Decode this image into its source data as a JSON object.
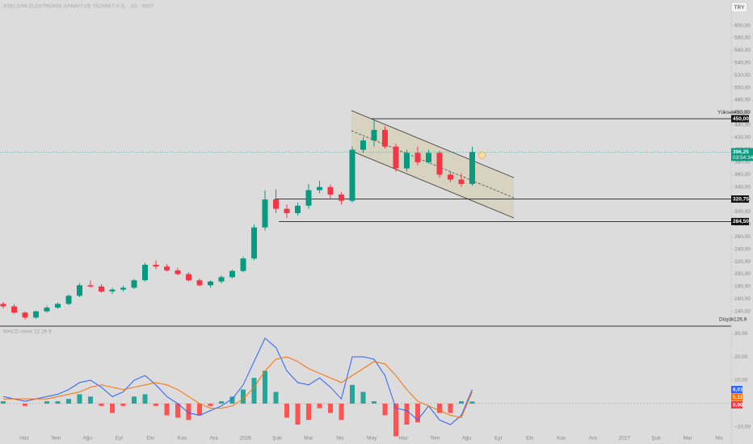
{
  "header": {
    "symbol_title": "ASELSAN ELEKTRONİK SANAYİ VE TİCARET A.Ş. · 1G · BIST",
    "currency": "TRY"
  },
  "chart_data": [
    {
      "type": "candlestick",
      "time_labels": [
        "Haz",
        "Tem",
        "Ağu",
        "Eyl",
        "Eki",
        "Kas",
        "Ara",
        "2026",
        "Şub",
        "Mar",
        "Nis",
        "May",
        "Haz",
        "Tem",
        "Ağu",
        "Eyl",
        "Eki",
        "Kas",
        "Ara",
        "2027",
        "Şub",
        "Mar",
        "Nis"
      ],
      "open": [
        152,
        148,
        138,
        130,
        140,
        146,
        152,
        165,
        182,
        180,
        172,
        175,
        178,
        190,
        215,
        212,
        206,
        200,
        190,
        182,
        188,
        195,
        205,
        225,
        275,
        320,
        305,
        298,
        310,
        335,
        340,
        328,
        318,
        400,
        415,
        432,
        405,
        370,
        395,
        380,
        395,
        360,
        352,
        345
      ],
      "high": [
        155,
        152,
        140,
        141,
        149,
        154,
        167,
        185,
        190,
        184,
        178,
        181,
        192,
        218,
        222,
        216,
        210,
        203,
        193,
        190,
        198,
        207,
        228,
        280,
        335,
        336,
        312,
        315,
        345,
        350,
        344,
        332,
        405,
        420,
        450,
        438,
        410,
        400,
        405,
        400,
        398,
        365,
        362,
        405
      ],
      "low": [
        145,
        136,
        126.9,
        128,
        138,
        144,
        150,
        163,
        178,
        170,
        168,
        172,
        176,
        188,
        208,
        204,
        198,
        188,
        180,
        178,
        185,
        193,
        203,
        222,
        270,
        298,
        290,
        294,
        305,
        330,
        322,
        312,
        315,
        395,
        405,
        402,
        365,
        365,
        375,
        378,
        355,
        348,
        340,
        342
      ],
      "close": [
        148,
        138,
        130,
        140,
        146,
        152,
        165,
        182,
        180,
        172,
        175,
        178,
        190,
        215,
        212,
        206,
        200,
        190,
        182,
        188,
        195,
        205,
        225,
        275,
        320,
        305,
        298,
        310,
        335,
        340,
        328,
        318,
        400,
        415,
        432,
        405,
        370,
        395,
        380,
        395,
        360,
        352,
        345,
        396.25
      ],
      "up_color": "#089981",
      "down_color": "#f23645",
      "ylim": [
        117.5,
        641
      ],
      "yticks": [
        {
          "value": 140,
          "label": "140,00"
        },
        {
          "value": 160,
          "label": "160,00"
        },
        {
          "value": 180,
          "label": "180,00"
        },
        {
          "value": 200,
          "label": "200,00"
        },
        {
          "value": 220,
          "label": "220,00"
        },
        {
          "value": 240,
          "label": "240,00"
        },
        {
          "value": 260,
          "label": "260,00"
        },
        {
          "value": 280,
          "label": "280,00"
        },
        {
          "value": 300,
          "label": "300,00"
        },
        {
          "value": 320,
          "label": "320,00"
        },
        {
          "value": 340,
          "label": "340,00"
        },
        {
          "value": 360,
          "label": "360,00"
        },
        {
          "value": 380,
          "label": "380,00"
        },
        {
          "value": 400,
          "label": "400,00"
        },
        {
          "value": 420,
          "label": "420,00"
        },
        {
          "value": 440,
          "label": "440,00"
        },
        {
          "value": 460,
          "label": "460,00"
        },
        {
          "value": 480,
          "label": "480,00"
        },
        {
          "value": 500,
          "label": "500,00"
        },
        {
          "value": 520,
          "label": "520,00"
        },
        {
          "value": 540,
          "label": "540,00"
        },
        {
          "value": 560,
          "label": "560,00"
        },
        {
          "value": 580,
          "label": "580,00"
        },
        {
          "value": 600,
          "label": "600,00"
        }
      ],
      "levels": [
        {
          "value": 450,
          "label": "450,00"
        },
        {
          "value": 320.75,
          "label": "320,75"
        },
        {
          "value": 284.5,
          "label": "284,50"
        }
      ],
      "high_marker": {
        "name": "Yüksek",
        "value": 450,
        "label": "450,00"
      },
      "low_marker": {
        "name": "Düşük",
        "value": 126.9,
        "label": "126,9"
      },
      "last_price": {
        "value": 396.25,
        "label": "396,25",
        "countdown": "03:54:34",
        "color": "#089981"
      },
      "event_marker": "D"
    },
    {
      "type": "macd",
      "title": "MACD close 12 26 9",
      "ylim": [
        -12.8,
        32.8
      ],
      "yticks": [
        {
          "value": 30,
          "label": "30,00"
        },
        {
          "value": 20,
          "label": "20,00"
        },
        {
          "value": 10,
          "label": "10,00"
        },
        {
          "value": -10,
          "label": "−10,00"
        }
      ],
      "series": [
        {
          "name": "MACD",
          "color": "#2962ff",
          "last_label": "6,01",
          "values": [
            3,
            2,
            1,
            2,
            3,
            4,
            6,
            9,
            10,
            7,
            3,
            5,
            10,
            12,
            8,
            3,
            0,
            -4,
            -5,
            -3,
            -1,
            2,
            8,
            18,
            28,
            24,
            14,
            9,
            8,
            11,
            7,
            2,
            20,
            20,
            19,
            12,
            -2,
            -3,
            -7,
            -1,
            -7,
            -9,
            -5,
            6.01
          ]
        },
        {
          "name": "Signal",
          "color": "#ff6d00",
          "last_label": "5,11",
          "values": [
            2,
            2,
            2,
            2,
            2,
            3,
            4,
            5,
            7,
            8,
            7,
            6,
            7,
            8,
            9,
            8,
            6,
            3,
            0,
            -2,
            -2,
            -1,
            2,
            7,
            14,
            19,
            20,
            18,
            15,
            13,
            11,
            9,
            12,
            15,
            18,
            17,
            12,
            6,
            1,
            -1,
            -3,
            -5,
            -6,
            5.11
          ]
        }
      ],
      "histogram": {
        "name": "Histogram",
        "up_color": "#26a69a",
        "down_color": "#ff5252",
        "label_color": "#f23645",
        "last_label": "0,90",
        "values": [
          1,
          0,
          -1,
          0,
          1,
          1,
          2,
          4,
          3,
          -1,
          -4,
          -1,
          3,
          4,
          -1,
          -5,
          -6,
          -7,
          -5,
          -1,
          1,
          3,
          6,
          11,
          14,
          5,
          -6,
          -9,
          -7,
          -2,
          -4,
          -7,
          8,
          5,
          1,
          -5,
          -14,
          -9,
          -8,
          0,
          -4,
          -4,
          1,
          0.9
        ]
      }
    }
  ]
}
